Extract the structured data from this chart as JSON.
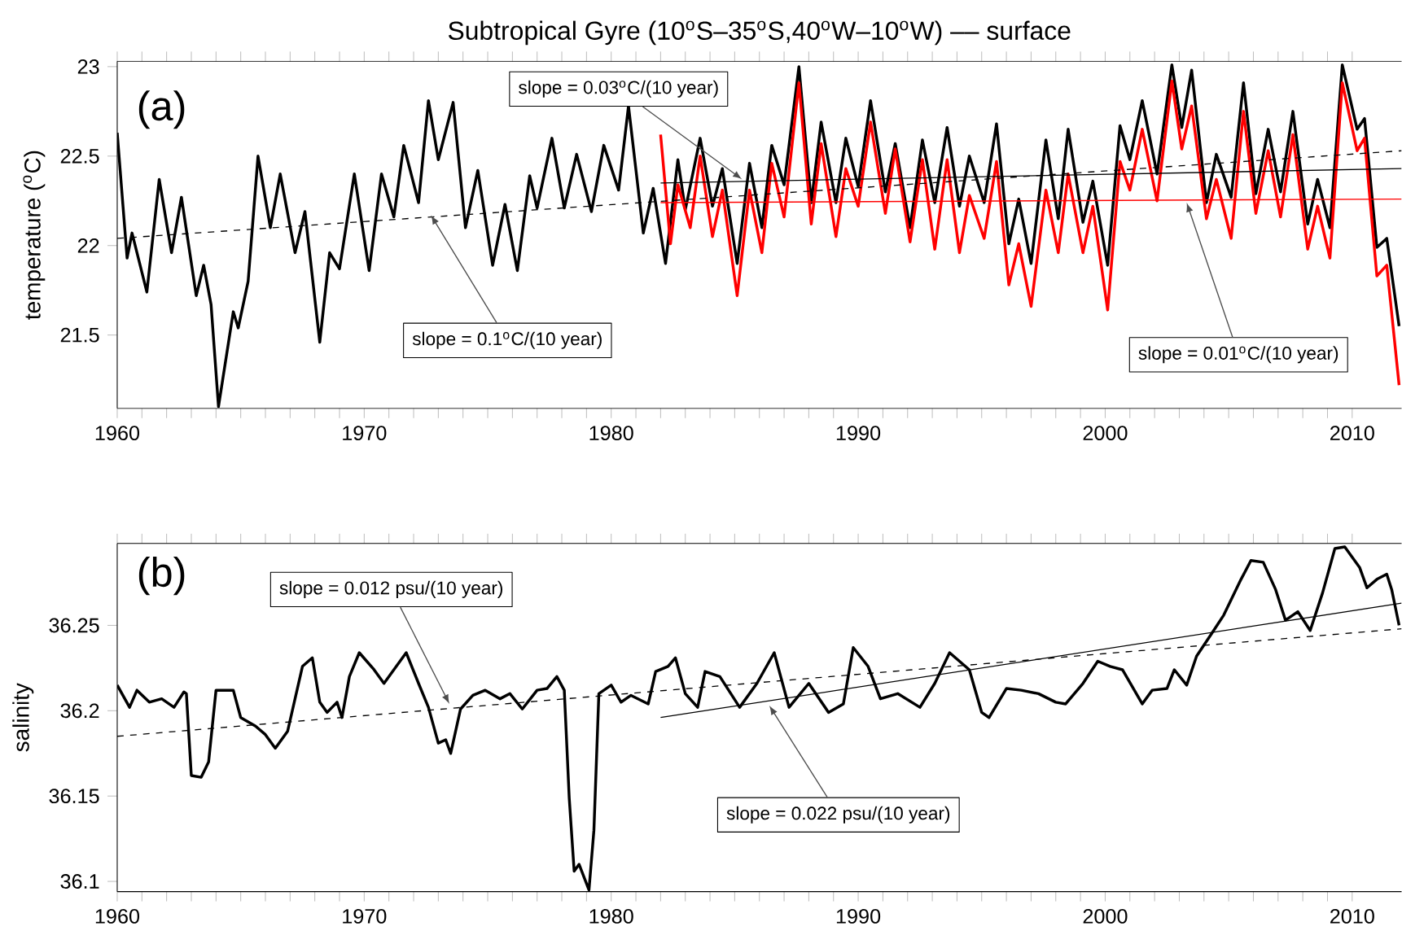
{
  "chart_data": [
    {
      "type": "line",
      "title": "Subtropical Gyre (10$^{o}$S–35$^{o}$S,40$^{o}$W–10$^{o}$W) –– surface",
      "ylabel": "temperature ($^{o}$C)",
      "xlim": [
        1960,
        2012
      ],
      "ylim": [
        21.09,
        23.03
      ],
      "xticks": [
        1960,
        1970,
        1980,
        1990,
        2000,
        2010
      ],
      "yticks": [
        21.5,
        22,
        22.5,
        23
      ],
      "series": [
        {
          "type": "line",
          "color": "#000000",
          "line_style": "solid",
          "x": [
            1960.0,
            1960.4,
            1960.6,
            1961.2,
            1961.7,
            1962.2,
            1962.6,
            1963.2,
            1963.5,
            1963.8,
            1964.1,
            1964.7,
            1964.9,
            1965.3,
            1965.7,
            1966.2,
            1966.6,
            1967.2,
            1967.6,
            1968.2,
            1968.6,
            1969.0,
            1969.6,
            1970.2,
            1970.7,
            1971.2,
            1971.6,
            1972.2,
            1972.6,
            1973.0,
            1973.6,
            1974.1,
            1974.6,
            1975.2,
            1975.7,
            1976.2,
            1976.7,
            1977.0,
            1977.6,
            1978.1,
            1978.6,
            1979.2,
            1979.7,
            1980.3,
            1980.7,
            1981.3,
            1981.7,
            1982.2,
            1982.7,
            1983.0,
            1983.6,
            1984.1,
            1984.5,
            1985.1,
            1985.6,
            1986.1,
            1986.5,
            1987.0,
            1987.6,
            1988.1,
            1988.5,
            1989.1,
            1989.5,
            1990.0,
            1990.5,
            1991.1,
            1991.5,
            1992.1,
            1992.6,
            1993.1,
            1993.6,
            1994.1,
            1994.5,
            1995.1,
            1995.6,
            1996.1,
            1996.5,
            1997.0,
            1997.6,
            1998.1,
            1998.5,
            1999.1,
            1999.5,
            2000.1,
            2000.6,
            2001.0,
            2001.5,
            2002.1,
            2002.7,
            2003.1,
            2003.5,
            2004.1,
            2004.5,
            2005.1,
            2005.6,
            2006.1,
            2006.6,
            2007.1,
            2007.6,
            2008.2,
            2008.6,
            2009.1,
            2009.6,
            2010.2,
            2010.5,
            2011.0,
            2011.4,
            2011.9
          ],
          "values": [
            22.63,
            21.93,
            22.07,
            21.74,
            22.37,
            21.96,
            22.27,
            21.72,
            21.89,
            21.67,
            21.1,
            21.63,
            21.54,
            21.8,
            22.5,
            22.1,
            22.4,
            21.96,
            22.19,
            21.46,
            21.96,
            21.87,
            22.4,
            21.86,
            22.4,
            22.16,
            22.56,
            22.24,
            22.81,
            22.48,
            22.8,
            22.1,
            22.42,
            21.89,
            22.23,
            21.86,
            22.39,
            22.21,
            22.6,
            22.21,
            22.51,
            22.19,
            22.56,
            22.31,
            22.78,
            22.07,
            22.32,
            21.9,
            22.48,
            22.2,
            22.6,
            22.22,
            22.43,
            21.9,
            22.46,
            22.1,
            22.56,
            22.34,
            23.0,
            22.24,
            22.69,
            22.24,
            22.6,
            22.33,
            22.81,
            22.3,
            22.57,
            22.1,
            22.59,
            22.24,
            22.66,
            22.22,
            22.5,
            22.24,
            22.68,
            22.01,
            22.26,
            21.9,
            22.59,
            22.15,
            22.65,
            22.13,
            22.36,
            21.89,
            22.67,
            22.48,
            22.81,
            22.4,
            23.01,
            22.66,
            22.98,
            22.24,
            22.51,
            22.27,
            22.91,
            22.29,
            22.65,
            22.3,
            22.75,
            22.12,
            22.37,
            22.1,
            23.01,
            22.65,
            22.71,
            21.99,
            22.04,
            21.55
          ]
        },
        {
          "type": "line",
          "color": "#ff0000",
          "line_style": "solid",
          "x": [
            1982.0,
            1982.4,
            1982.7,
            1983.2,
            1983.6,
            1984.1,
            1984.5,
            1985.1,
            1985.6,
            1986.1,
            1986.5,
            1987.0,
            1987.6,
            1988.1,
            1988.5,
            1989.1,
            1989.5,
            1990.0,
            1990.5,
            1991.1,
            1991.5,
            1992.1,
            1992.6,
            1993.1,
            1993.6,
            1994.1,
            1994.5,
            1995.1,
            1995.6,
            1996.1,
            1996.5,
            1997.0,
            1997.6,
            1998.1,
            1998.5,
            1999.1,
            1999.5,
            2000.1,
            2000.6,
            2001.0,
            2001.5,
            2002.1,
            2002.7,
            2003.1,
            2003.5,
            2004.1,
            2004.5,
            2005.1,
            2005.6,
            2006.1,
            2006.6,
            2007.1,
            2007.6,
            2008.2,
            2008.6,
            2009.1,
            2009.6,
            2010.2,
            2010.5,
            2011.0,
            2011.4,
            2011.9
          ],
          "values": [
            22.62,
            22.01,
            22.34,
            22.1,
            22.5,
            22.05,
            22.31,
            21.72,
            22.31,
            21.96,
            22.46,
            22.16,
            22.91,
            22.12,
            22.57,
            22.05,
            22.43,
            22.22,
            22.69,
            22.18,
            22.54,
            22.02,
            22.48,
            21.98,
            22.48,
            21.96,
            22.28,
            22.04,
            22.47,
            21.78,
            22.01,
            21.66,
            22.31,
            21.96,
            22.4,
            21.96,
            22.22,
            21.64,
            22.47,
            22.31,
            22.65,
            22.25,
            22.92,
            22.54,
            22.78,
            22.15,
            22.37,
            22.04,
            22.75,
            22.18,
            22.53,
            22.16,
            22.62,
            21.98,
            22.22,
            21.93,
            22.91,
            22.53,
            22.6,
            21.83,
            21.89,
            21.22
          ]
        },
        {
          "type": "line",
          "color": "#000000",
          "line_style": "dashed",
          "x": [
            1960,
            2012
          ],
          "values": [
            22.04,
            22.53
          ]
        },
        {
          "type": "line",
          "color": "#000000",
          "line_style": "solid",
          "x": [
            1982,
            2012
          ],
          "values": [
            22.35,
            22.43
          ]
        },
        {
          "type": "line",
          "color": "#ff0000",
          "line_style": "solid",
          "x": [
            1982,
            2012
          ],
          "values": [
            22.24,
            22.26
          ]
        }
      ],
      "annotations": [
        "(a)",
        {
          "text": "slope = 0.03$^{o}$C/(10 year)",
          "x": 1985.3,
          "y": 22.37
        },
        {
          "text": "slope = 0.1$^{o}$C/(10 year)",
          "x": 1972.7,
          "y": 22.17
        },
        {
          "text": "slope = 0.01$^{o}$C/(10 year)",
          "x": 2003.3,
          "y": 22.24
        }
      ]
    },
    {
      "type": "line",
      "ylabel": "salinity",
      "xlim": [
        1960,
        2012
      ],
      "ylim": [
        36.094,
        36.298
      ],
      "xticks": [
        1960,
        1970,
        1980,
        1990,
        2000,
        2010
      ],
      "yticks": [
        36.1,
        36.15,
        36.2,
        36.25
      ],
      "series": [
        {
          "type": "line",
          "color": "#000000",
          "line_style": "solid",
          "x": [
            1960.0,
            1960.5,
            1960.8,
            1961.3,
            1961.8,
            1962.3,
            1962.7,
            1962.8,
            1963.0,
            1963.4,
            1963.7,
            1964.0,
            1964.7,
            1965.0,
            1965.6,
            1966.0,
            1966.4,
            1966.9,
            1967.2,
            1967.5,
            1967.9,
            1968.2,
            1968.5,
            1968.9,
            1969.1,
            1969.4,
            1969.8,
            1970.4,
            1970.8,
            1971.3,
            1971.7,
            1972.2,
            1972.6,
            1973.0,
            1973.3,
            1973.5,
            1973.9,
            1974.4,
            1974.9,
            1975.5,
            1975.9,
            1976.4,
            1977.0,
            1977.4,
            1977.8,
            1978.1,
            1978.3,
            1978.5,
            1978.7,
            1979.1,
            1979.3,
            1979.5,
            1980.0,
            1980.4,
            1980.8,
            1981.5,
            1981.8,
            1982.3,
            1982.6,
            1983.0,
            1983.5,
            1983.8,
            1984.4,
            1985.2,
            1985.9,
            1986.6,
            1987.2,
            1988.0,
            1988.8,
            1989.4,
            1989.8,
            1990.4,
            1990.9,
            1991.6,
            1992.5,
            1993.1,
            1993.7,
            1994.5,
            1995.0,
            1995.3,
            1996.0,
            1996.6,
            1997.3,
            1998.0,
            1998.4,
            1999.1,
            1999.7,
            2000.2,
            2000.7,
            2001.5,
            2001.9,
            2002.5,
            2002.8,
            2003.3,
            2003.7,
            2004.3,
            2004.8,
            2005.5,
            2005.9,
            2006.4,
            2006.9,
            2007.3,
            2007.8,
            2008.3,
            2008.8,
            2009.3,
            2009.7,
            2010.3,
            2010.6,
            2011.0,
            2011.4,
            2011.6,
            2011.9
          ],
          "values": [
            36.215,
            36.202,
            36.212,
            36.205,
            36.207,
            36.202,
            36.211,
            36.21,
            36.162,
            36.161,
            36.17,
            36.212,
            36.212,
            36.196,
            36.191,
            36.186,
            36.178,
            36.188,
            36.207,
            36.226,
            36.231,
            36.205,
            36.199,
            36.205,
            36.196,
            36.22,
            36.234,
            36.224,
            36.216,
            36.226,
            36.234,
            36.216,
            36.202,
            36.181,
            36.183,
            36.175,
            36.201,
            36.209,
            36.212,
            36.207,
            36.21,
            36.201,
            36.212,
            36.213,
            36.22,
            36.212,
            36.149,
            36.106,
            36.11,
            36.095,
            36.13,
            36.21,
            36.215,
            36.205,
            36.209,
            36.204,
            36.223,
            36.226,
            36.231,
            36.21,
            36.202,
            36.223,
            36.22,
            36.202,
            36.216,
            36.234,
            36.202,
            36.216,
            36.199,
            36.204,
            36.237,
            36.226,
            36.207,
            36.21,
            36.202,
            36.216,
            36.234,
            36.224,
            36.199,
            36.196,
            36.213,
            36.212,
            36.21,
            36.205,
            36.204,
            36.216,
            36.229,
            36.226,
            36.224,
            36.204,
            36.212,
            36.213,
            36.224,
            36.215,
            36.232,
            36.245,
            36.256,
            36.277,
            36.288,
            36.287,
            36.271,
            36.253,
            36.258,
            36.247,
            36.269,
            36.295,
            36.296,
            36.284,
            36.272,
            36.277,
            36.28,
            36.271,
            36.25
          ]
        },
        {
          "type": "line",
          "color": "#000000",
          "line_style": "dashed",
          "x": [
            1960,
            2012
          ],
          "values": [
            36.185,
            36.248
          ]
        },
        {
          "type": "line",
          "color": "#000000",
          "line_style": "solid",
          "x": [
            1982,
            2012
          ],
          "values": [
            36.196,
            36.263
          ]
        }
      ],
      "annotations": [
        "(b)",
        {
          "text": "slope = 0.012 psu/(10 year)",
          "x": 1973.45,
          "y": 36.204
        },
        {
          "text": "slope = 0.022 psu/(10 year)",
          "x": 1986.4,
          "y": 36.203
        }
      ]
    }
  ]
}
